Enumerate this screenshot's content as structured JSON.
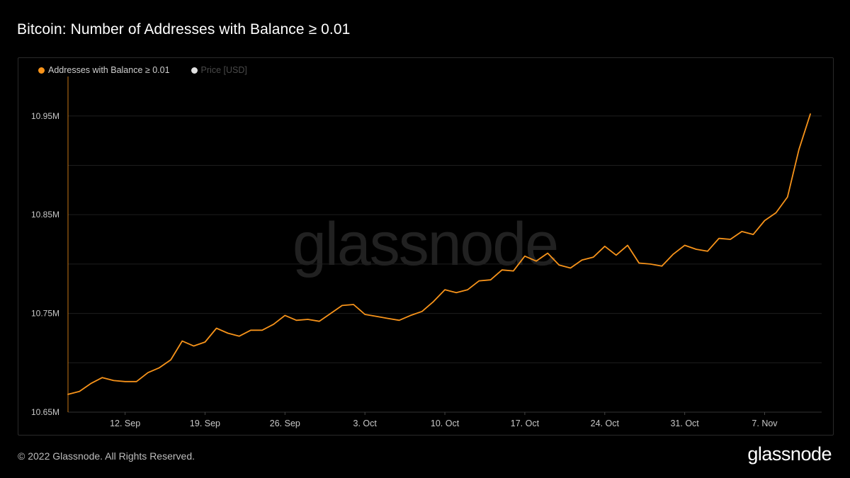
{
  "header": {
    "title": "Bitcoin: Number of Addresses with Balance ≥ 0.01"
  },
  "legend": [
    {
      "label": "Addresses with Balance ≥ 0.01",
      "color": "#f7931a"
    },
    {
      "label": "Price [USD]",
      "color": "#e0e0e0"
    }
  ],
  "watermark": "glassnode",
  "footer": {
    "copyright": "© 2022 Glassnode. All Rights Reserved.",
    "brand": "glassnode"
  },
  "chart_data": {
    "type": "line",
    "title": "Bitcoin: Number of Addresses with Balance ≥ 0.01",
    "xlabel": "",
    "ylabel": "",
    "x_start": "2022-09-07",
    "x_ticks": [
      "12. Sep",
      "19. Sep",
      "26. Sep",
      "3. Oct",
      "10. Oct",
      "17. Oct",
      "24. Oct",
      "31. Oct",
      "7. Nov"
    ],
    "y_ticks": [
      "10.65M",
      "10.75M",
      "10.85M",
      "10.95M"
    ],
    "ylim": [
      10.65,
      10.99
    ],
    "grid": true,
    "legend_position": "top-left",
    "series": [
      {
        "name": "Addresses with Balance ≥ 0.01",
        "color": "#f7931a",
        "unit": "M",
        "values": [
          10.668,
          10.671,
          10.679,
          10.685,
          10.682,
          10.681,
          10.681,
          10.69,
          10.695,
          10.703,
          10.722,
          10.717,
          10.721,
          10.735,
          10.73,
          10.727,
          10.733,
          10.733,
          10.739,
          10.748,
          10.743,
          10.744,
          10.742,
          10.75,
          10.758,
          10.759,
          10.749,
          10.747,
          10.745,
          10.743,
          10.748,
          10.752,
          10.762,
          10.774,
          10.771,
          10.774,
          10.783,
          10.784,
          10.794,
          10.793,
          10.808,
          10.803,
          10.811,
          10.799,
          10.796,
          10.804,
          10.807,
          10.818,
          10.809,
          10.819,
          10.801,
          10.8,
          10.798,
          10.81,
          10.819,
          10.815,
          10.813,
          10.826,
          10.825,
          10.833,
          10.83,
          10.844,
          10.852,
          10.868,
          10.916,
          10.952
        ]
      }
    ]
  }
}
